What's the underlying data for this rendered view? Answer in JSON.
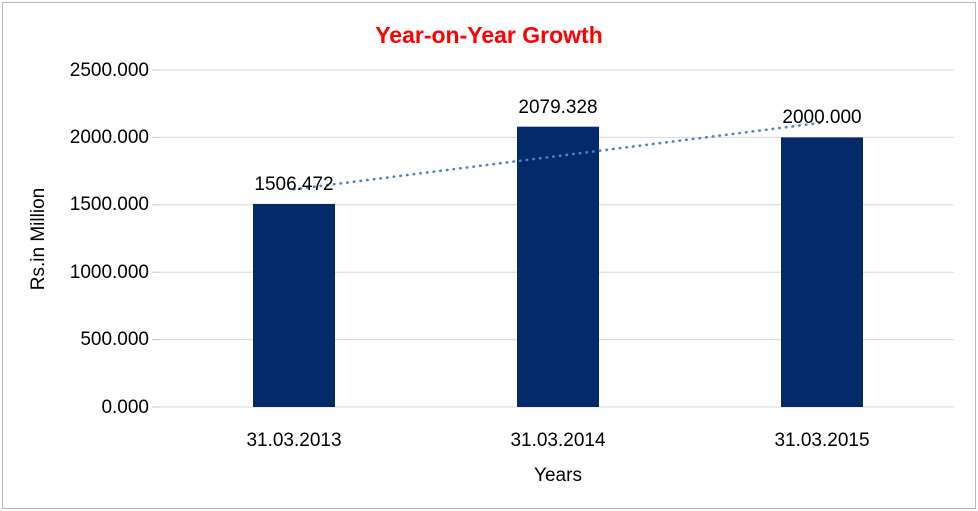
{
  "chart_data": {
    "type": "bar",
    "title": "Year-on-Year Growth",
    "title_color": "#ff0000",
    "xlabel": "Years",
    "ylabel": "Rs.in Million",
    "categories": [
      "31.03.2013",
      "31.03.2014",
      "31.03.2015"
    ],
    "values": [
      1506.472,
      2079.328,
      2000.0
    ],
    "data_labels": [
      "1506.472",
      "2079.328",
      "2000.000"
    ],
    "ytick_labels": [
      "0.000",
      "500.000",
      "1000.000",
      "1500.000",
      "2000.000",
      "2500.000"
    ],
    "ytick_values": [
      0,
      500,
      1000,
      1500,
      2000,
      2500
    ],
    "ylim": [
      0,
      2500
    ],
    "grid": true,
    "legend": false,
    "bar_color": "#042a6a",
    "trendline": {
      "style": "dotted",
      "color": "#4d82c3"
    },
    "gridline_color": "#d9d9d9",
    "tick_color": "#c9c9c9",
    "axis_line_color": "#d9d9d9"
  }
}
